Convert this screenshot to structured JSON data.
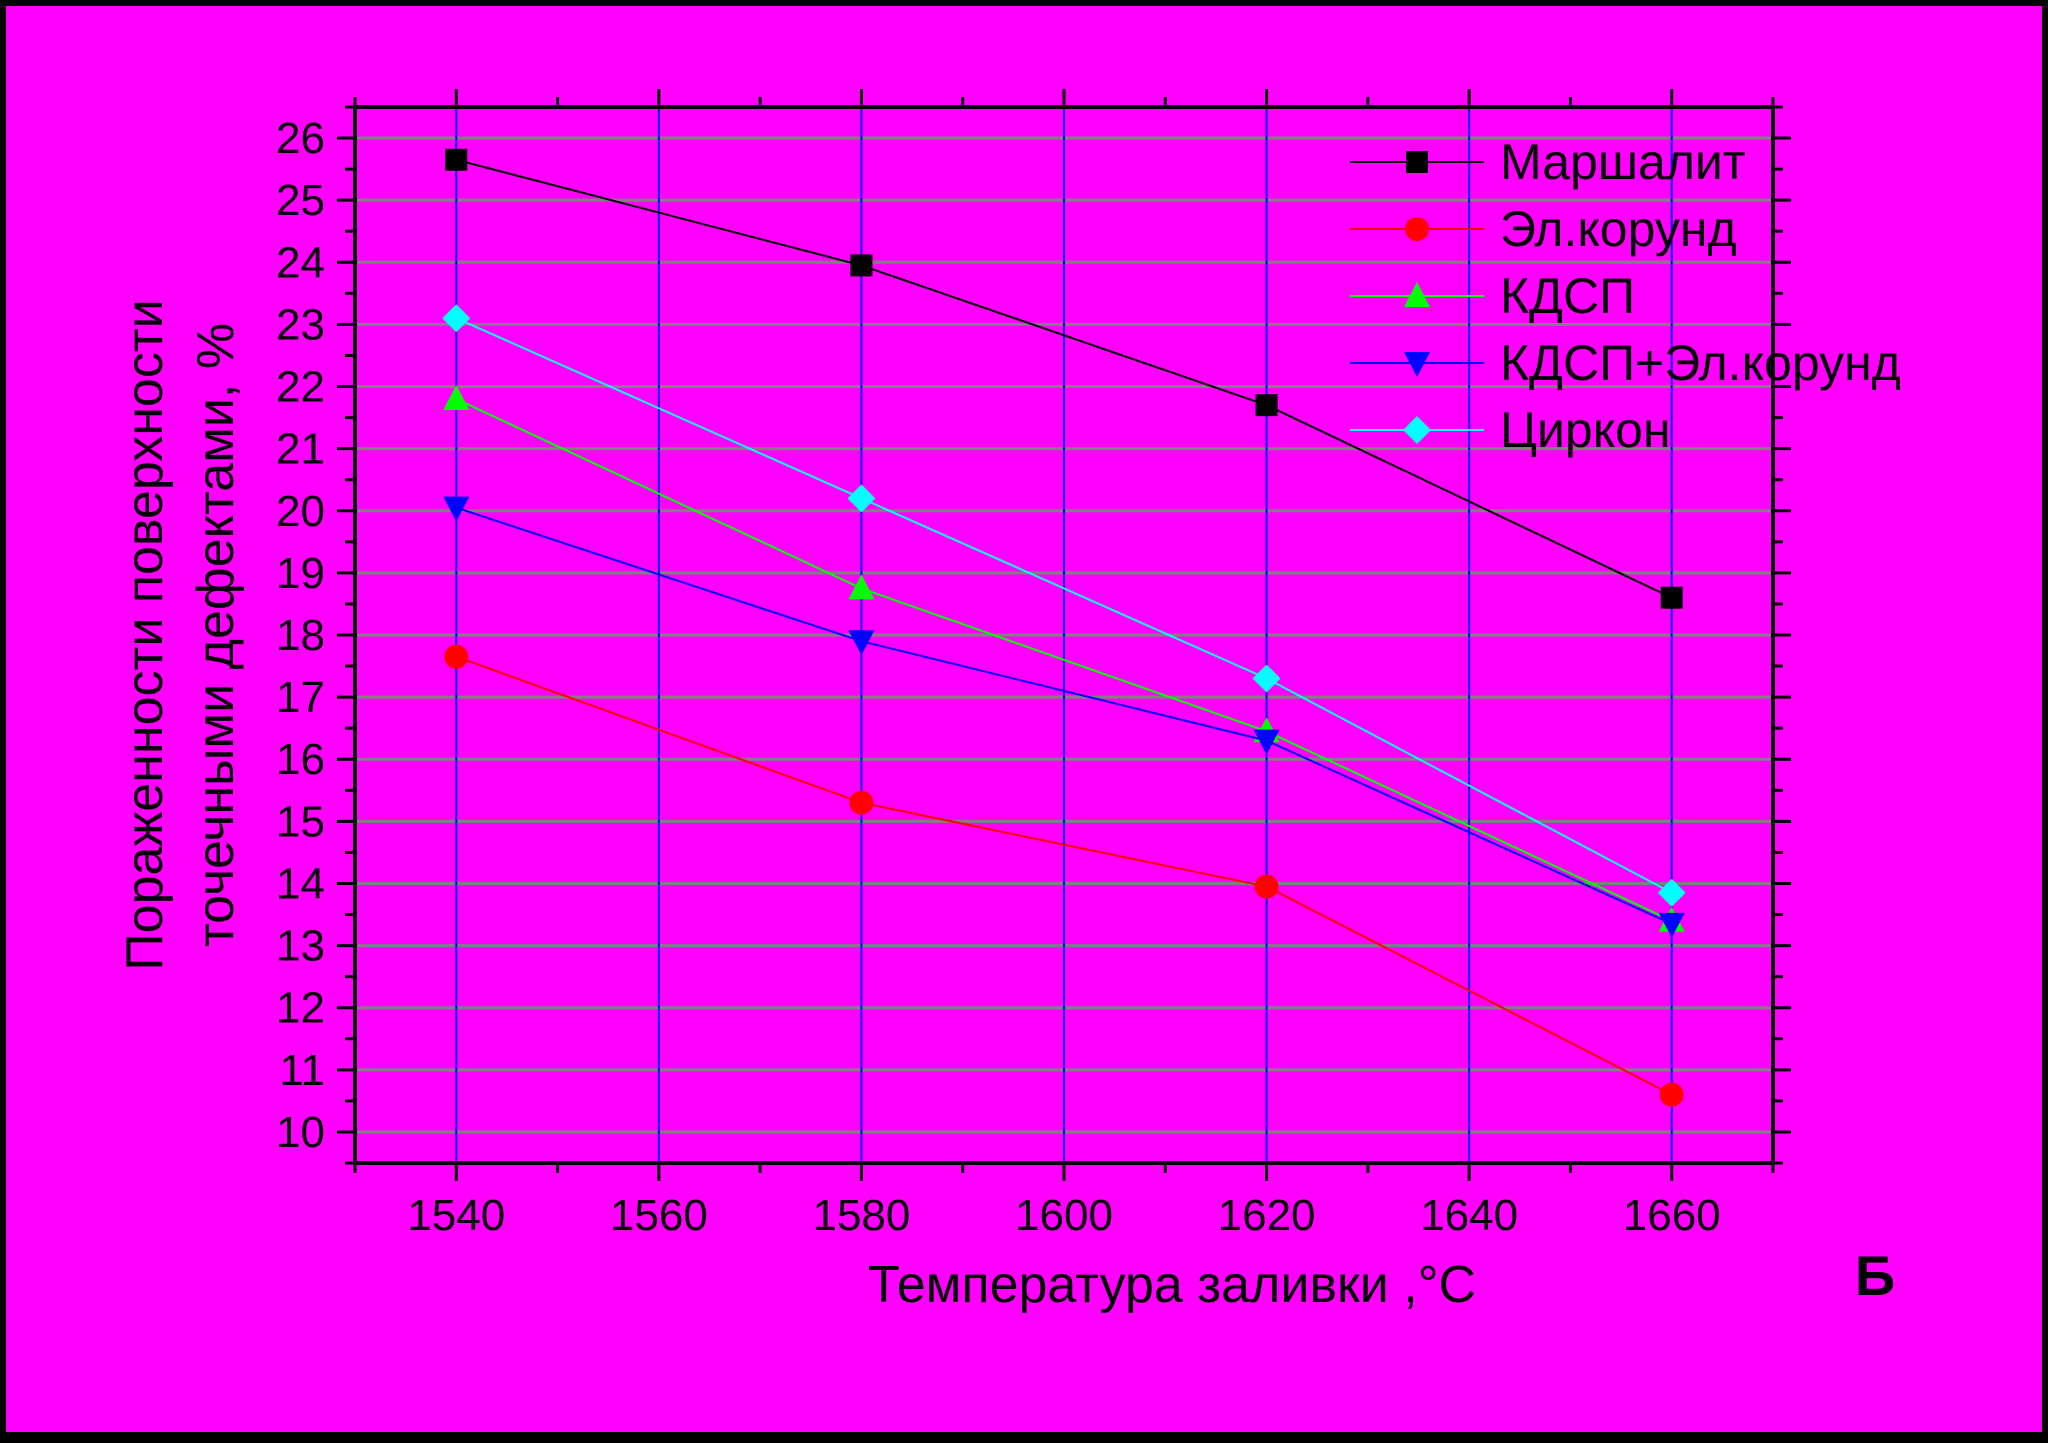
{
  "colors": {
    "frame": "#000000",
    "background": "#ff00ff",
    "axis": "#000000",
    "grid_x": "#0000ff",
    "grid_y": "#808080",
    "text": "#000000"
  },
  "panel_label": "Б",
  "chart_data": {
    "type": "line",
    "xlabel": "Температура заливки ,°C",
    "ylabel_lines": [
      "Пораженности поверхности",
      "точечными дефектами, %"
    ],
    "xlim": [
      1530,
      1670
    ],
    "ylim": [
      9.5,
      26.5
    ],
    "xticks": [
      1540,
      1560,
      1580,
      1600,
      1620,
      1640,
      1660
    ],
    "yticks": [
      10,
      11,
      12,
      13,
      14,
      15,
      16,
      17,
      18,
      19,
      20,
      21,
      22,
      23,
      24,
      25,
      26
    ],
    "x_minor_step": 10,
    "y_minor_step": 0.5,
    "grid": true,
    "legend_position": "top-right",
    "x": [
      1540,
      1580,
      1620,
      1660
    ],
    "series": [
      {
        "name": "Маршалит",
        "color": "#000000",
        "marker": "square",
        "values": [
          25.65,
          23.95,
          21.7,
          18.6
        ]
      },
      {
        "name": "Эл.корунд",
        "color": "#ff0000",
        "marker": "circle",
        "values": [
          17.65,
          15.3,
          13.95,
          10.6
        ]
      },
      {
        "name": "КДСП",
        "color": "#00ff00",
        "marker": "triangle-up",
        "values": [
          21.8,
          18.75,
          16.45,
          13.4
        ]
      },
      {
        "name": "КДСП+Эл.корунд",
        "color": "#0000ff",
        "marker": "triangle-down",
        "values": [
          20.05,
          17.9,
          16.3,
          13.35
        ]
      },
      {
        "name": "Циркон",
        "color": "#00ffff",
        "marker": "diamond",
        "values": [
          23.1,
          20.2,
          17.3,
          13.85
        ]
      }
    ]
  }
}
